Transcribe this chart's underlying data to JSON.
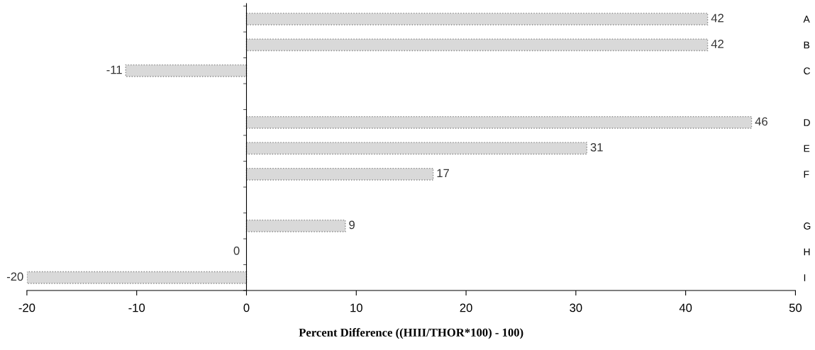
{
  "chart_data": {
    "type": "bar",
    "orientation": "horizontal",
    "xlabel": "Percent Difference ((HIII/THOR*100) - 100)",
    "categories": [
      "A",
      "B",
      "C",
      null,
      "D",
      "E",
      "F",
      null,
      "G",
      "H",
      "I"
    ],
    "values": [
      42,
      42,
      -11,
      null,
      46,
      31,
      17,
      null,
      9,
      0,
      -20
    ],
    "color": "#d9d9d9",
    "data_labels": true,
    "xlim": [
      -20,
      50
    ],
    "xticks": [
      -20,
      -10,
      0,
      10,
      20,
      30,
      40,
      50
    ],
    "legend": false
  }
}
